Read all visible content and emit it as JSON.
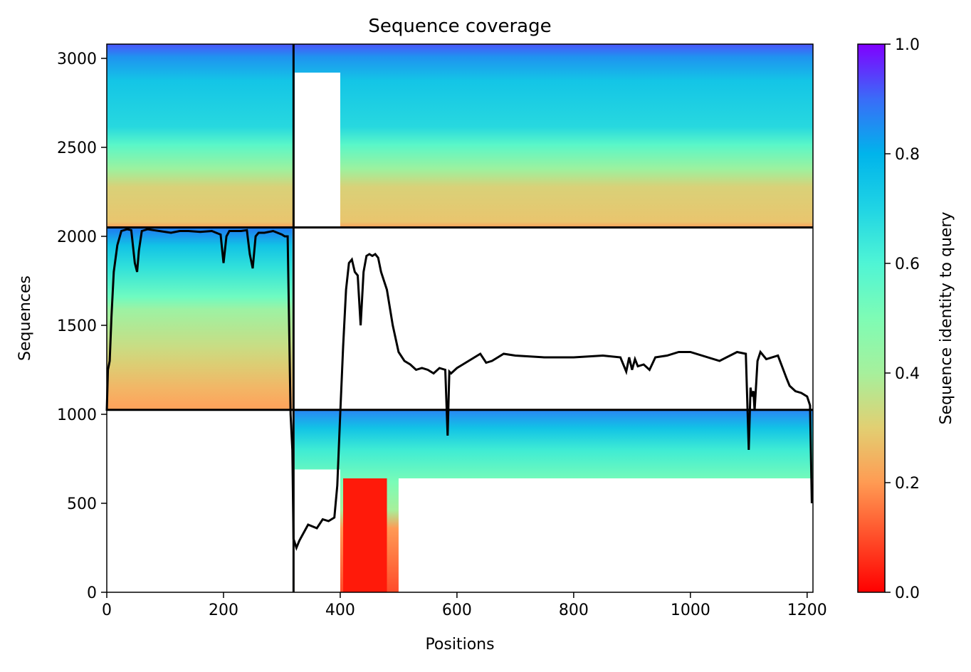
{
  "chart_data": {
    "type": "heatmap",
    "title": "Sequence coverage",
    "xlabel": "Positions",
    "ylabel": "Sequences",
    "xlim": [
      0,
      1210
    ],
    "ylim": [
      0,
      3080
    ],
    "xticks": [
      "0",
      "200",
      "400",
      "600",
      "800",
      "1000",
      "1200"
    ],
    "yticks": [
      "0",
      "500",
      "1000",
      "1500",
      "2000",
      "2500",
      "3000"
    ],
    "colorbar": {
      "label": "Sequence identity to query",
      "range": [
        0.0,
        1.0
      ],
      "ticks": [
        "0.0",
        "0.2",
        "0.4",
        "0.6",
        "0.8",
        "1.0"
      ],
      "colormap": "rainbow"
    },
    "chain_boundaries": {
      "x": [
        320
      ],
      "y": [
        1025,
        2050
      ]
    },
    "blocks": [
      {
        "name": "chain-A-block",
        "x": [
          0,
          318
        ],
        "y": [
          1025,
          2050
        ],
        "identity_bottom": 0.2,
        "identity_top": 0.85
      },
      {
        "name": "chain-B-block",
        "x": [
          322,
          1210
        ],
        "y": [
          0,
          1025
        ],
        "identity_bottom": 0.0,
        "identity_top": 0.85
      },
      {
        "name": "paired-block",
        "x": [
          0,
          1210
        ],
        "y": [
          2050,
          3080
        ],
        "identity_bottom": 0.2,
        "identity_top": 0.85
      }
    ],
    "coverage_line": {
      "x": [
        0,
        2,
        5,
        8,
        12,
        18,
        25,
        35,
        42,
        48,
        52,
        55,
        60,
        70,
        90,
        110,
        125,
        140,
        160,
        180,
        195,
        200,
        205,
        210,
        215,
        230,
        240,
        245,
        250,
        255,
        260,
        270,
        285,
        300,
        305,
        310,
        315,
        318,
        320,
        325,
        330,
        335,
        345,
        360,
        370,
        380,
        390,
        395,
        400,
        405,
        410,
        415,
        420,
        425,
        430,
        435,
        440,
        445,
        450,
        455,
        460,
        465,
        470,
        475,
        480,
        485,
        490,
        500,
        510,
        520,
        530,
        540,
        550,
        560,
        570,
        580,
        584,
        587,
        590,
        600,
        610,
        620,
        640,
        650,
        660,
        670,
        680,
        700,
        750,
        800,
        850,
        880,
        890,
        895,
        900,
        905,
        910,
        920,
        930,
        940,
        960,
        980,
        1000,
        1050,
        1080,
        1095,
        1100,
        1103,
        1105,
        1108,
        1110,
        1115,
        1120,
        1130,
        1150,
        1165,
        1170,
        1180,
        1190,
        1200,
        1205,
        1208
      ],
      "y": [
        1020,
        1250,
        1300,
        1550,
        1800,
        1950,
        2030,
        2040,
        2035,
        1850,
        1800,
        1920,
        2030,
        2040,
        2030,
        2020,
        2030,
        2030,
        2025,
        2030,
        2010,
        1850,
        2000,
        2030,
        2030,
        2030,
        2035,
        1900,
        1820,
        2000,
        2020,
        2020,
        2030,
        2010,
        2000,
        2000,
        1000,
        800,
        300,
        250,
        290,
        320,
        380,
        360,
        410,
        400,
        420,
        600,
        1000,
        1380,
        1700,
        1850,
        1870,
        1800,
        1780,
        1500,
        1800,
        1890,
        1900,
        1890,
        1900,
        1880,
        1800,
        1750,
        1700,
        1600,
        1500,
        1350,
        1300,
        1280,
        1250,
        1260,
        1250,
        1230,
        1260,
        1250,
        880,
        1240,
        1230,
        1260,
        1280,
        1300,
        1340,
        1290,
        1300,
        1320,
        1340,
        1330,
        1320,
        1320,
        1330,
        1320,
        1240,
        1320,
        1250,
        1310,
        1270,
        1280,
        1250,
        1320,
        1330,
        1350,
        1350,
        1300,
        1350,
        1340,
        800,
        1150,
        1100,
        1130,
        1020,
        1300,
        1350,
        1310,
        1330,
        1200,
        1160,
        1130,
        1120,
        1100,
        1050,
        500
      ]
    }
  }
}
